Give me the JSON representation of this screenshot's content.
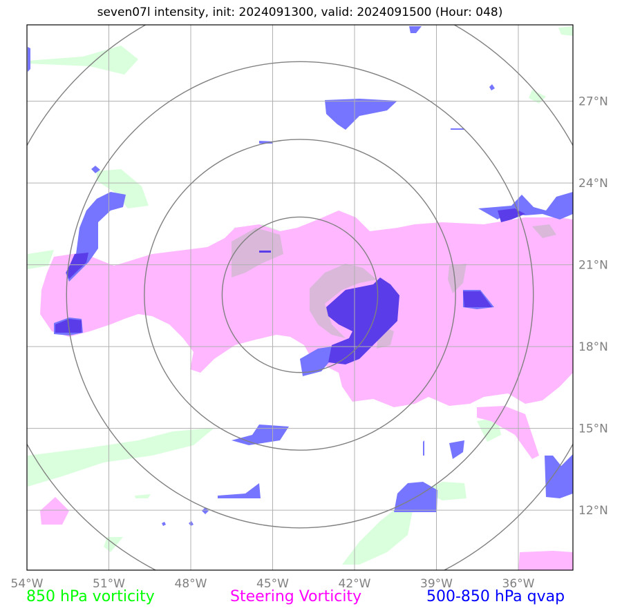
{
  "title": "seven07l intensity, init: 2024091300, valid: 2024091500 (Hour: 048)",
  "map": {
    "lon_range": [
      -54,
      -34
    ],
    "lat_range": [
      9.8,
      29.8
    ],
    "lon_ticks": [
      {
        "value": -54,
        "label": "54°W"
      },
      {
        "value": -51,
        "label": "51°W"
      },
      {
        "value": -48,
        "label": "48°W"
      },
      {
        "value": -45,
        "label": "45°W"
      },
      {
        "value": -42,
        "label": "42°W"
      },
      {
        "value": -39,
        "label": "39°W"
      },
      {
        "value": -36,
        "label": "36°W"
      }
    ],
    "lat_ticks": [
      {
        "value": 27,
        "label": "27°N"
      },
      {
        "value": 24,
        "label": "24°N"
      },
      {
        "value": 21,
        "label": "21°N"
      },
      {
        "value": 18,
        "label": "18°N"
      },
      {
        "value": 15,
        "label": "15°N"
      },
      {
        "value": 12,
        "label": "12°N"
      }
    ],
    "center": {
      "lon": -44.0,
      "lat": 19.9
    },
    "ring_radii_deg": [
      2.85,
      5.7,
      8.55,
      11.4
    ],
    "colors": {
      "vort850": "#d9ffdc",
      "steering": "#ffb8ff",
      "qvap": "#5a5aff",
      "rings": "#808080",
      "grid": "#b0b0b0"
    }
  },
  "legend": {
    "vort850": {
      "label": "850 hPa vorticity",
      "color": "#00ff00"
    },
    "steering": {
      "label": "Steering Vorticity",
      "color": "#ff00ff"
    },
    "qvap": {
      "label": "500-850 hPa qvap",
      "color": "#0000ff"
    }
  }
}
